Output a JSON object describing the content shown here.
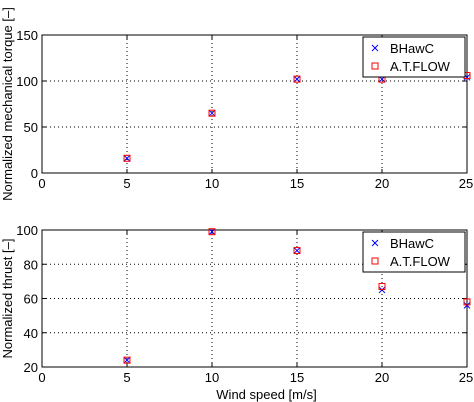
{
  "chart_data": [
    {
      "type": "scatter",
      "xlabel": "",
      "ylabel": "Normalized mechanical torque [–]",
      "xlim": [
        0,
        25
      ],
      "ylim": [
        0,
        150
      ],
      "xticks": [
        0,
        5,
        10,
        15,
        20,
        25
      ],
      "yticks": [
        0,
        50,
        100,
        150
      ],
      "xtick_labels": [
        "0",
        "5",
        "10",
        "15",
        "20",
        "25"
      ],
      "ytick_labels": [
        "0",
        "50",
        "100",
        "150"
      ],
      "grid": true,
      "legend_position": "top-right",
      "x": [
        5,
        10,
        15,
        20,
        25
      ],
      "series": [
        {
          "name": "BHawC",
          "marker": "x",
          "color": "#0000ff",
          "values": [
            16,
            65,
            102,
            102,
            104
          ]
        },
        {
          "name": "A.T.FLOW",
          "marker": "square",
          "color": "#ff0000",
          "values": [
            16,
            65,
            102,
            102,
            106
          ]
        }
      ]
    },
    {
      "type": "scatter",
      "xlabel": "Wind speed [m/s]",
      "ylabel": "Normalized thrust [–]",
      "xlim": [
        0,
        25
      ],
      "ylim": [
        20,
        100
      ],
      "xticks": [
        0,
        5,
        10,
        15,
        20,
        25
      ],
      "yticks": [
        20,
        40,
        60,
        80,
        100
      ],
      "xtick_labels": [
        "0",
        "5",
        "10",
        "15",
        "20",
        "25"
      ],
      "ytick_labels": [
        "20",
        "40",
        "60",
        "80",
        "100"
      ],
      "grid": true,
      "legend_position": "top-right",
      "x": [
        5,
        10,
        15,
        20,
        25
      ],
      "series": [
        {
          "name": "BHawC",
          "marker": "x",
          "color": "#0000ff",
          "values": [
            24,
            99,
            88,
            65,
            56
          ]
        },
        {
          "name": "A.T.FLOW",
          "marker": "square",
          "color": "#ff0000",
          "values": [
            24,
            99,
            88,
            67,
            58
          ]
        }
      ]
    }
  ]
}
